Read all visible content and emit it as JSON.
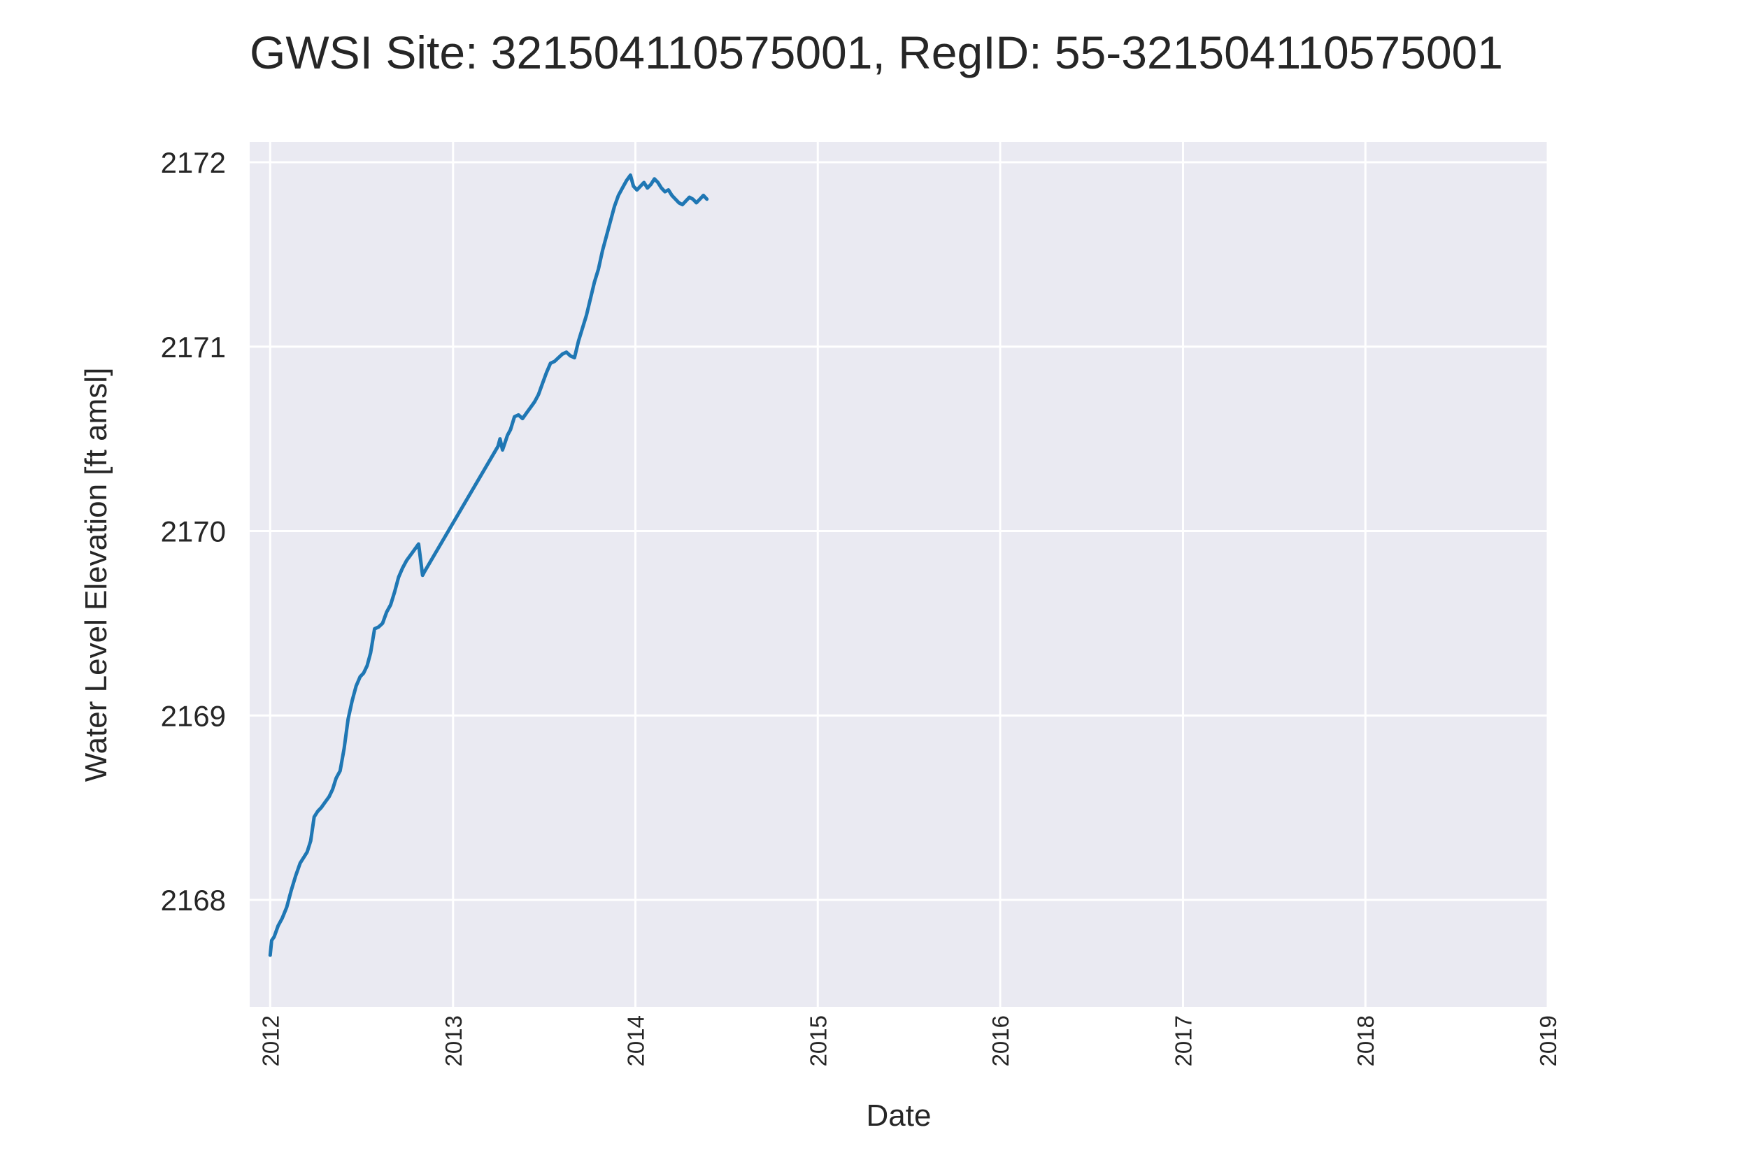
{
  "chart_data": {
    "type": "line",
    "title": "GWSI Site: 321504110575001, RegID: 55-321504110575001",
    "xlabel": "Date",
    "ylabel": "Water Level Elevation [ft amsl]",
    "xlim": [
      "2011-11-21",
      "2019-01-01"
    ],
    "ylim": [
      2167.42,
      2172.11
    ],
    "x_ticks": [
      "2012",
      "2013",
      "2014",
      "2015",
      "2016",
      "2017",
      "2018",
      "2019"
    ],
    "y_ticks": [
      "2168",
      "2169",
      "2170",
      "2171",
      "2172"
    ],
    "grid": true,
    "background_color": "#eaeaf2",
    "grid_color": "#ffffff",
    "series": [
      {
        "color": "#1f77b4",
        "x": [
          "2012-01-01",
          "2012-01-04",
          "2012-01-09",
          "2012-01-17",
          "2012-01-25",
          "2012-02-03",
          "2012-02-12",
          "2012-02-21",
          "2012-03-01",
          "2012-03-08",
          "2012-03-15",
          "2012-03-22",
          "2012-03-29",
          "2012-04-05",
          "2012-04-12",
          "2012-04-20",
          "2012-04-28",
          "2012-05-05",
          "2012-05-12",
          "2012-05-20",
          "2012-05-28",
          "2012-06-05",
          "2012-06-13",
          "2012-06-21",
          "2012-06-29",
          "2012-07-06",
          "2012-07-13",
          "2012-07-20",
          "2012-07-28",
          "2012-08-05",
          "2012-08-13",
          "2012-08-21",
          "2012-08-29",
          "2012-09-06",
          "2012-09-14",
          "2012-09-22",
          "2012-09-30",
          "2012-10-08",
          "2012-10-16",
          "2012-10-24",
          "2012-11-01",
          "2012-11-05",
          "2013-04-01",
          "2013-04-05",
          "2013-04-10",
          "2013-04-15",
          "2013-04-20",
          "2013-04-26",
          "2013-05-04",
          "2013-05-12",
          "2013-05-20",
          "2013-05-28",
          "2013-06-05",
          "2013-06-13",
          "2013-06-21",
          "2013-06-29",
          "2013-07-07",
          "2013-07-15",
          "2013-07-23",
          "2013-07-31",
          "2013-08-08",
          "2013-08-16",
          "2013-08-24",
          "2013-09-01",
          "2013-09-09",
          "2013-09-17",
          "2013-09-25",
          "2013-10-03",
          "2013-10-11",
          "2013-10-19",
          "2013-10-27",
          "2013-11-04",
          "2013-11-12",
          "2013-11-20",
          "2013-11-28",
          "2013-12-06",
          "2013-12-14",
          "2013-12-22",
          "2013-12-28",
          "2014-01-04",
          "2014-01-11",
          "2014-01-18",
          "2014-01-25",
          "2014-02-01",
          "2014-02-08",
          "2014-02-15",
          "2014-02-22",
          "2014-03-01",
          "2014-03-08",
          "2014-03-15",
          "2014-03-22",
          "2014-03-29",
          "2014-04-05",
          "2014-04-12",
          "2014-04-19",
          "2014-04-26",
          "2014-05-03",
          "2014-05-10",
          "2014-05-17",
          "2014-05-24"
        ],
        "y": [
          2167.7,
          2167.78,
          2167.8,
          2167.86,
          2167.9,
          2167.96,
          2168.05,
          2168.13,
          2168.2,
          2168.23,
          2168.26,
          2168.32,
          2168.45,
          2168.48,
          2168.5,
          2168.53,
          2168.56,
          2168.6,
          2168.66,
          2168.7,
          2168.82,
          2168.98,
          2169.08,
          2169.16,
          2169.21,
          2169.23,
          2169.27,
          2169.34,
          2169.47,
          2169.48,
          2169.5,
          2169.56,
          2169.6,
          2169.67,
          2169.75,
          2169.8,
          2169.84,
          2169.87,
          2169.9,
          2169.93,
          2169.76,
          2169.78,
          2170.46,
          2170.5,
          2170.44,
          2170.48,
          2170.52,
          2170.55,
          2170.62,
          2170.63,
          2170.61,
          2170.64,
          2170.67,
          2170.7,
          2170.74,
          2170.8,
          2170.86,
          2170.91,
          2170.92,
          2170.94,
          2170.96,
          2170.97,
          2170.95,
          2170.94,
          2171.03,
          2171.1,
          2171.17,
          2171.26,
          2171.35,
          2171.42,
          2171.52,
          2171.6,
          2171.68,
          2171.76,
          2171.82,
          2171.86,
          2171.9,
          2171.93,
          2171.87,
          2171.85,
          2171.87,
          2171.89,
          2171.86,
          2171.88,
          2171.91,
          2171.89,
          2171.86,
          2171.84,
          2171.85,
          2171.82,
          2171.8,
          2171.78,
          2171.77,
          2171.79,
          2171.81,
          2171.8,
          2171.78,
          2171.8,
          2171.82,
          2171.8
        ]
      }
    ]
  }
}
